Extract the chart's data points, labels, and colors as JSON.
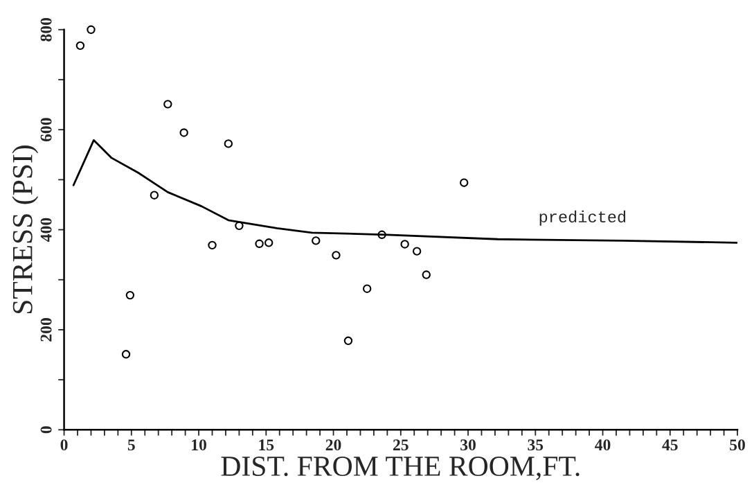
{
  "chart_data": {
    "type": "scatter",
    "xlabel": "DIST. FROM THE ROOM,FT.",
    "ylabel": "STRESS (PSI)",
    "xlim": [
      0,
      50
    ],
    "ylim": [
      0,
      800
    ],
    "xticks": [
      0,
      {
        "value": 1,
        "label": null
      },
      {
        "value": 2,
        "label": null
      },
      {
        "value": 3,
        "label": null
      },
      {
        "value": 4,
        "label": null
      },
      5,
      {
        "value": 6,
        "label": null
      },
      {
        "value": 7,
        "label": null
      },
      {
        "value": 8,
        "label": null
      },
      {
        "value": 9,
        "label": null
      },
      10,
      {
        "value": 11,
        "label": null
      },
      {
        "value": 12,
        "label": null
      },
      {
        "value": 13,
        "label": null
      },
      {
        "value": 14,
        "label": null
      },
      15,
      {
        "value": 16,
        "label": null
      },
      {
        "value": 17,
        "label": null
      },
      {
        "value": 18,
        "label": null
      },
      {
        "value": 19,
        "label": null
      },
      20,
      {
        "value": 21,
        "label": null
      },
      {
        "value": 22,
        "label": null
      },
      {
        "value": 23,
        "label": null
      },
      {
        "value": 24,
        "label": null
      },
      25,
      {
        "value": 26,
        "label": null
      },
      {
        "value": 27,
        "label": null
      },
      {
        "value": 28,
        "label": null
      },
      {
        "value": 29,
        "label": null
      },
      30,
      {
        "value": 31,
        "label": null
      },
      {
        "value": 32,
        "label": null
      },
      {
        "value": 33,
        "label": null
      },
      {
        "value": 34,
        "label": null
      },
      35,
      {
        "value": 36,
        "label": null
      },
      {
        "value": 37,
        "label": null
      },
      {
        "value": 38,
        "label": null
      },
      {
        "value": 39,
        "label": null
      },
      40,
      {
        "value": 41,
        "label": null
      },
      {
        "value": 42,
        "label": null
      },
      {
        "value": 43,
        "label": null
      },
      {
        "value": 44,
        "label": null
      },
      45,
      {
        "value": 46,
        "label": null
      },
      {
        "value": 47,
        "label": null
      },
      {
        "value": 48,
        "label": null
      },
      {
        "value": 49,
        "label": null
      },
      50
    ],
    "yticks": [
      0,
      {
        "value": 100,
        "label": null
      },
      200,
      {
        "value": 300,
        "label": null
      },
      400,
      {
        "value": 500,
        "label": null
      },
      600,
      {
        "value": 700,
        "label": null
      },
      800
    ],
    "grid": false,
    "legend": false,
    "series": [
      {
        "marker": "circle",
        "color": "#000000",
        "x": [
          1.2,
          2.0,
          7.7,
          8.9,
          12.2,
          6.7,
          29.7,
          13.0,
          23.6,
          14.5,
          15.2,
          18.7,
          25.3,
          26.2,
          11.0,
          20.2,
          26.9,
          4.9,
          22.5,
          21.1,
          4.6
        ],
        "values": [
          768,
          800,
          651,
          594,
          572,
          469,
          494,
          408,
          390,
          372,
          374,
          378,
          371,
          357,
          369,
          349,
          310,
          269,
          282,
          178,
          151
        ]
      },
      {
        "type": "line",
        "color": "#000000",
        "line_style": "solid",
        "x": [
          0.7,
          2.2,
          3.5,
          5.5,
          7.7,
          10.2,
          12.2,
          15.8,
          18.4,
          24.0,
          32.2,
          41.5,
          50
        ],
        "values": [
          489,
          579,
          544,
          514,
          475,
          447,
          419,
          403,
          394,
          390,
          381,
          378,
          374
        ]
      }
    ],
    "annotations": [
      "predicted"
    ]
  }
}
